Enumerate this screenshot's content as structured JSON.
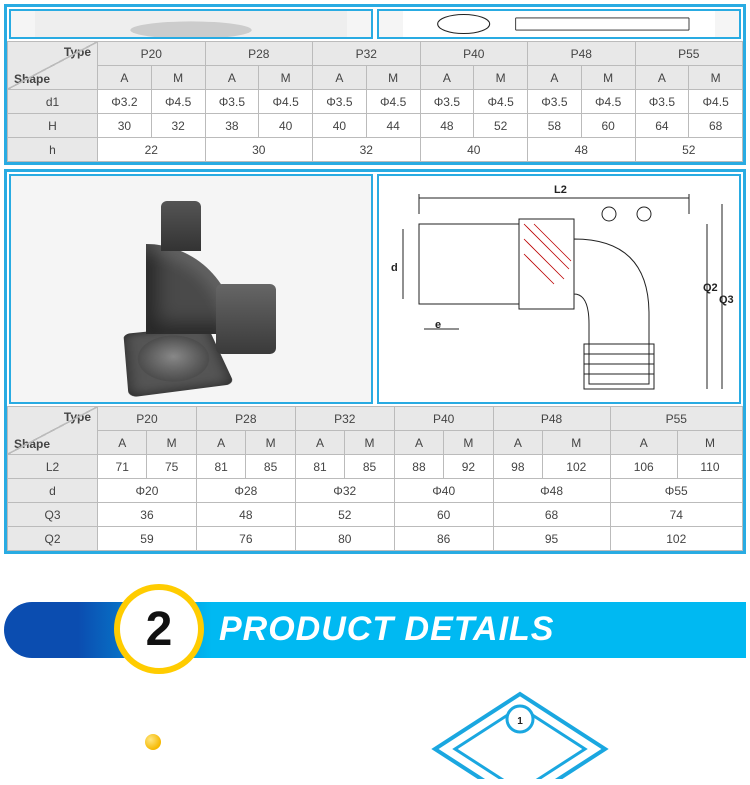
{
  "colors": {
    "frame": "#29abe2",
    "header_bg": "#e8e8e8",
    "cell_border": "#bbbbbb",
    "banner_left": "#0b4db0",
    "banner_right": "#00b9f2",
    "banner_ring": "#ffcc00",
    "text": "#444444"
  },
  "table1": {
    "corner": {
      "type": "Type",
      "shape": "Shape"
    },
    "type_cols": [
      "P20",
      "P28",
      "P32",
      "P40",
      "P48",
      "P55"
    ],
    "sub_cols": [
      "A",
      "M"
    ],
    "rows": [
      {
        "label": "d1",
        "span": false,
        "vals": [
          "Φ3.2",
          "Φ4.5",
          "Φ3.5",
          "Φ4.5",
          "Φ3.5",
          "Φ4.5",
          "Φ3.5",
          "Φ4.5",
          "Φ3.5",
          "Φ4.5",
          "Φ3.5",
          "Φ4.5"
        ]
      },
      {
        "label": "H",
        "span": false,
        "vals": [
          "30",
          "32",
          "38",
          "40",
          "40",
          "44",
          "48",
          "52",
          "58",
          "60",
          "64",
          "68"
        ]
      },
      {
        "label": "h",
        "span": true,
        "vals": [
          "22",
          "30",
          "32",
          "40",
          "48",
          "52"
        ]
      }
    ]
  },
  "drawing": {
    "labels": {
      "L2": "L2",
      "d": "d",
      "e": "e",
      "Q2": "Q2",
      "Q3": "Q3"
    }
  },
  "table2": {
    "corner": {
      "type": "Type",
      "shape": "Shape"
    },
    "type_cols": [
      "P20",
      "P28",
      "P32",
      "P40",
      "P48",
      "P55"
    ],
    "sub_cols": [
      "A",
      "M"
    ],
    "rows": [
      {
        "label": "L2",
        "span": false,
        "vals": [
          "71",
          "75",
          "81",
          "85",
          "81",
          "85",
          "88",
          "92",
          "98",
          "102",
          "106",
          "110"
        ]
      },
      {
        "label": "d",
        "span": true,
        "vals": [
          "Φ20",
          "Φ28",
          "Φ32",
          "Φ40",
          "Φ48",
          "Φ55"
        ]
      },
      {
        "label": "Q3",
        "span": true,
        "vals": [
          "36",
          "48",
          "52",
          "60",
          "68",
          "74"
        ]
      },
      {
        "label": "Q2",
        "span": true,
        "vals": [
          "59",
          "76",
          "80",
          "86",
          "95",
          "102"
        ]
      }
    ]
  },
  "section": {
    "number": "2",
    "title": "PRODUCT DETAILS"
  },
  "bottom_badge": "1"
}
